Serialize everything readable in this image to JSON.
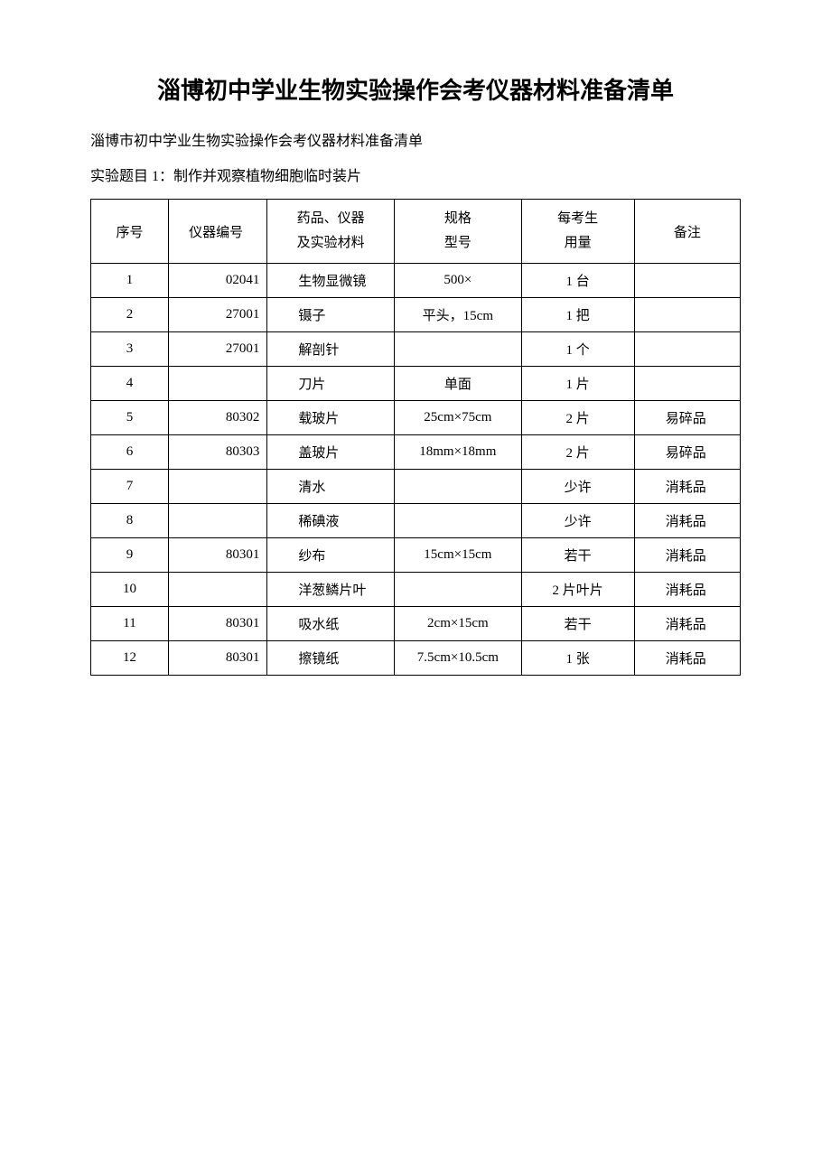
{
  "title": "淄博初中学业生物实验操作会考仪器材料准备清单",
  "subtitle": "淄博市初中学业生物实验操作会考仪器材料准备清单",
  "experiment_title": "实验题目 1：制作并观察植物细胞临时装片",
  "headers": {
    "seq": "序号",
    "code": "仪器编号",
    "material": "药品、仪器\n及实验材料",
    "spec": "规格\n型号",
    "qty": "每考生\n用量",
    "note": "备注"
  },
  "rows": [
    {
      "seq": "1",
      "code": "02041",
      "material": "生物显微镜",
      "spec": "500×",
      "qty": "1 台",
      "note": ""
    },
    {
      "seq": "2",
      "code": "27001",
      "material": "镊子",
      "spec": "平头，15cm",
      "qty": "1 把",
      "note": ""
    },
    {
      "seq": "3",
      "code": "27001",
      "material": "解剖针",
      "spec": "",
      "qty": "1 个",
      "note": ""
    },
    {
      "seq": "4",
      "code": "",
      "material": "刀片",
      "spec": "单面",
      "qty": "1 片",
      "note": ""
    },
    {
      "seq": "5",
      "code": "80302",
      "material": "载玻片",
      "spec": "25cm×75cm",
      "qty": "2 片",
      "note": "易碎品"
    },
    {
      "seq": "6",
      "code": "80303",
      "material": "盖玻片",
      "spec": "18mm×18mm",
      "qty": "2 片",
      "note": "易碎品"
    },
    {
      "seq": "7",
      "code": "",
      "material": "清水",
      "spec": "",
      "qty": "少许",
      "note": "消耗品"
    },
    {
      "seq": "8",
      "code": "",
      "material": "稀碘液",
      "spec": "",
      "qty": "少许",
      "note": "消耗品"
    },
    {
      "seq": "9",
      "code": "80301",
      "material": "纱布",
      "spec": "15cm×15cm",
      "qty": "若干",
      "note": "消耗品"
    },
    {
      "seq": "10",
      "code": "",
      "material": "洋葱鳞片叶",
      "spec": "",
      "qty": "2 片叶片",
      "note": "消耗品"
    },
    {
      "seq": "11",
      "code": "80301",
      "material": "吸水纸",
      "spec": "2cm×15cm",
      "qty": "若干",
      "note": "消耗品"
    },
    {
      "seq": "12",
      "code": "80301",
      "material": "擦镜纸",
      "spec": "7.5cm×10.5cm",
      "qty": "1 张",
      "note": "消耗品"
    }
  ]
}
